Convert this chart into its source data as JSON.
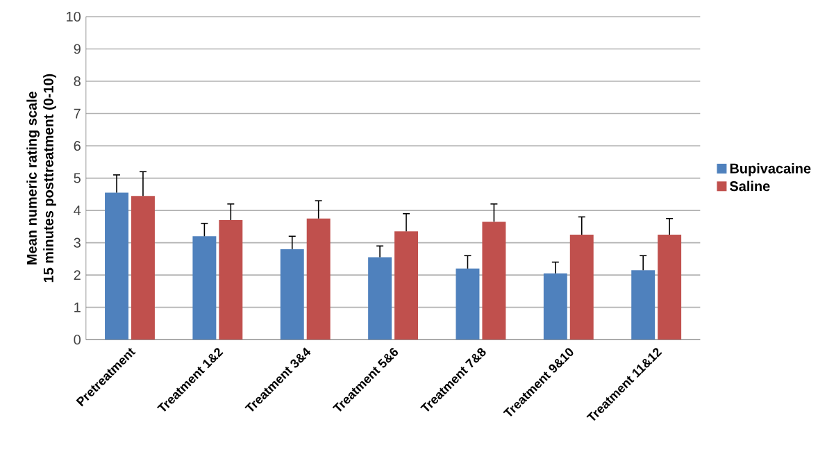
{
  "chart_data": {
    "type": "bar",
    "ylabel": "Mean numeric rating scale\n15 minutes posttreatment (0-10)",
    "categories": [
      "Pretreatment",
      "Treatment 1&2",
      "Treatment 3&4",
      "Treatment 5&6",
      "Treatment 7&8",
      "Treatment 9&10",
      "Treatment 11&12"
    ],
    "series": [
      {
        "name": "Bupivacaine",
        "color": "#4f81bd",
        "values": [
          4.55,
          3.2,
          2.8,
          2.55,
          2.2,
          2.05,
          2.15
        ],
        "errors": [
          0.55,
          0.4,
          0.4,
          0.35,
          0.4,
          0.35,
          0.45
        ]
      },
      {
        "name": "Saline",
        "color": "#c0504d",
        "values": [
          4.45,
          3.7,
          3.75,
          3.35,
          3.65,
          3.25,
          3.25
        ],
        "errors": [
          0.75,
          0.5,
          0.55,
          0.55,
          0.55,
          0.55,
          0.5
        ]
      }
    ],
    "ylim": [
      0,
      10
    ],
    "yticks": [
      0,
      1,
      2,
      3,
      4,
      5,
      6,
      7,
      8,
      9,
      10
    ],
    "grid": "y",
    "legend": "right"
  }
}
